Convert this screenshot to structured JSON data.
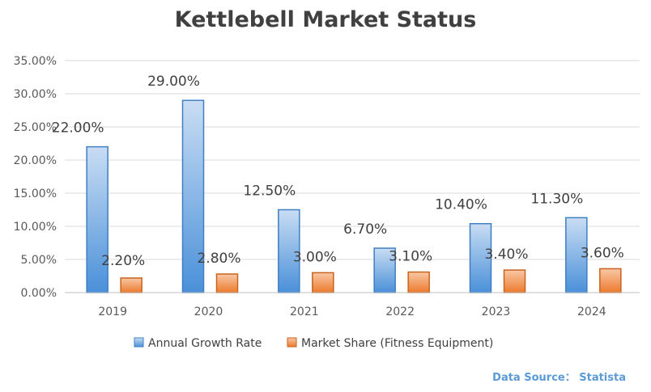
{
  "chart_data": {
    "type": "bar",
    "title": "Kettlebell Market Status",
    "categories": [
      "2019",
      "2020",
      "2021",
      "2022",
      "2023",
      "2024"
    ],
    "series": [
      {
        "name": "Annual Growth Rate",
        "values": [
          22.0,
          29.0,
          12.5,
          6.7,
          10.4,
          11.3
        ],
        "labels": [
          "22.00%",
          "29.00%",
          "12.50%",
          "6.70%",
          "10.40%",
          "11.30%"
        ],
        "color": "#5b9bd5"
      },
      {
        "name": "Market Share (Fitness Equipment)",
        "values": [
          2.2,
          2.8,
          3.0,
          3.1,
          3.4,
          3.6
        ],
        "labels": [
          "2.20%",
          "2.80%",
          "3.00%",
          "3.10%",
          "3.40%",
          "3.60%"
        ],
        "color": "#ed7d31"
      }
    ],
    "ylim": [
      0,
      35
    ],
    "y_ticks": [
      "0.00%",
      "5.00%",
      "10.00%",
      "15.00%",
      "20.00%",
      "25.00%",
      "30.00%",
      "35.00%"
    ],
    "grid": true,
    "legend_position": "bottom",
    "source_note": "Data Source： Statista"
  }
}
